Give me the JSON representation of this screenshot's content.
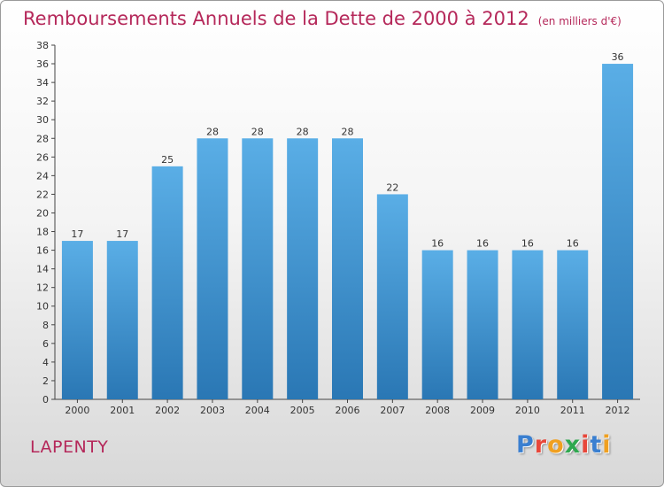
{
  "header": {
    "title": "Remboursements Annuels de la Dette de 2000 à 2012",
    "subtitle": "(en milliers d'€)"
  },
  "commune": "LAPENTY",
  "logo": {
    "text": "Proxiti",
    "letter_colors": [
      "#3a7fd0",
      "#e8473a",
      "#f0a020",
      "#2fa84f",
      "#e8473a",
      "#3a7fd0",
      "#f0a020"
    ]
  },
  "colors": {
    "bar_top": "#5aaee6",
    "bar_bottom": "#2a77b4",
    "text_accent": "#b5285a"
  },
  "chart_data": {
    "type": "bar",
    "title": "Remboursements Annuels de la Dette de 2000 à 2012",
    "subtitle": "(en milliers d'€)",
    "categories": [
      "2000",
      "2001",
      "2002",
      "2003",
      "2004",
      "2005",
      "2006",
      "2007",
      "2008",
      "2009",
      "2010",
      "2011",
      "2012"
    ],
    "values": [
      17,
      17,
      25,
      28,
      28,
      28,
      28,
      22,
      16,
      16,
      16,
      16,
      36
    ],
    "ylim": [
      0,
      38
    ],
    "ytick_step": 2,
    "xlabel": "",
    "ylabel": "",
    "grid": false,
    "data_labels": true
  }
}
